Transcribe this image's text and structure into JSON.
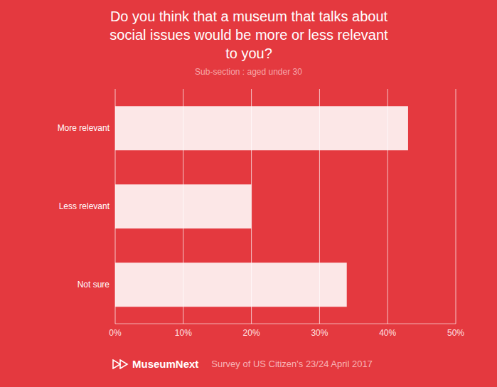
{
  "chart_data": {
    "type": "bar",
    "title": "Do you think that a museum that talks about social issues would be more or less relevant to you?",
    "subtitle": "Sub-section : aged under 30",
    "brand": "MuseumNext",
    "source": "Survey of US Citizen's 23/24 April 2017",
    "orientation": "horizontal",
    "categories": [
      "More relevant",
      "Less relevant",
      "Not sure"
    ],
    "values": [
      43,
      20,
      34
    ],
    "color": "#ffffff",
    "xlim": [
      0,
      50
    ],
    "xticks": [
      {
        "value": 0,
        "label": "0%"
      },
      {
        "value": 10,
        "label": "10%"
      },
      {
        "value": 20,
        "label": "20%"
      },
      {
        "value": 30,
        "label": "30%"
      },
      {
        "value": 40,
        "label": "40%"
      },
      {
        "value": 50,
        "label": "50%"
      }
    ],
    "grid": true
  }
}
